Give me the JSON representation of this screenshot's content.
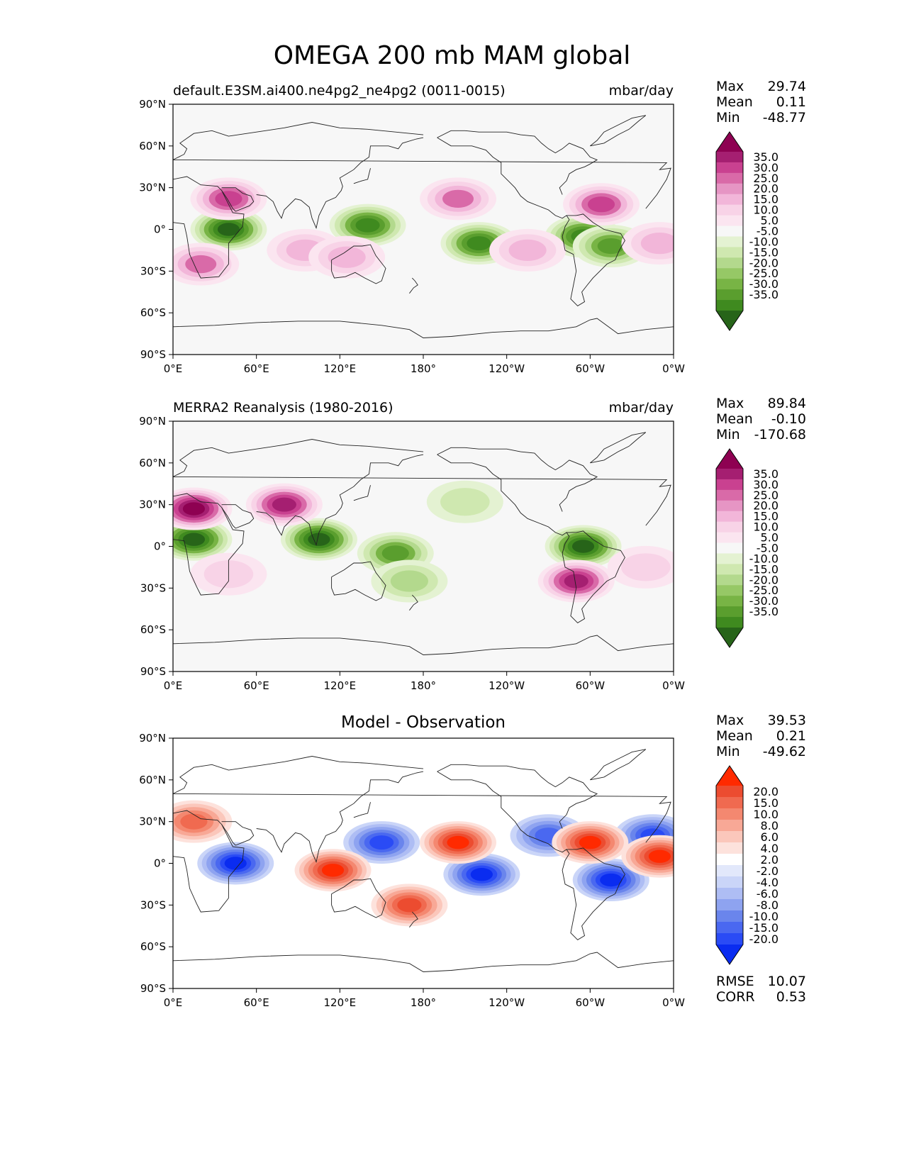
{
  "title": "OMEGA 200 mb MAM global",
  "panels": [
    {
      "id": "model",
      "left_title": "default.E3SM.ai400.ne4pg2_ne4pg2 (0011-0015)",
      "right_title": "mbar/day",
      "stats": {
        "max_label": "Max",
        "max": "29.74",
        "mean_label": "Mean",
        "mean": "0.11",
        "min_label": "Min",
        "min": "-48.77"
      },
      "colorbar": {
        "colors": [
          "#276419",
          "#3f8a1f",
          "#5a9e2e",
          "#78b445",
          "#96c866",
          "#b3d98d",
          "#cfe8b0",
          "#e4f2d2",
          "#f7f7f7",
          "#fbe5f0",
          "#f8d3e7",
          "#f2b6d9",
          "#e695c4",
          "#d96aa8",
          "#c94190",
          "#a51f71",
          "#8e0152"
        ],
        "labels": [
          "35.0",
          "30.0",
          "25.0",
          "20.0",
          "15.0",
          "10.0",
          "5.0",
          "-5.0",
          "-10.0",
          "-15.0",
          "-20.0",
          "-25.0",
          "-30.0",
          "-35.0"
        ]
      }
    },
    {
      "id": "obs",
      "left_title": "MERRA2 Reanalysis (1980-2016)",
      "right_title": "mbar/day",
      "stats": {
        "max_label": "Max",
        "max": "89.84",
        "mean_label": "Mean",
        "mean": "-0.10",
        "min_label": "Min",
        "min": "-170.68"
      },
      "colorbar": {
        "colors": [
          "#276419",
          "#3f8a1f",
          "#5a9e2e",
          "#78b445",
          "#96c866",
          "#b3d98d",
          "#cfe8b0",
          "#e4f2d2",
          "#f7f7f7",
          "#fbe5f0",
          "#f8d3e7",
          "#f2b6d9",
          "#e695c4",
          "#d96aa8",
          "#c94190",
          "#a51f71",
          "#8e0152"
        ],
        "labels": [
          "35.0",
          "30.0",
          "25.0",
          "20.0",
          "15.0",
          "10.0",
          "5.0",
          "-5.0",
          "-10.0",
          "-15.0",
          "-20.0",
          "-25.0",
          "-30.0",
          "-35.0"
        ]
      }
    },
    {
      "id": "diff",
      "center_title": "Model - Observation",
      "stats": {
        "max_label": "Max",
        "max": "39.53",
        "mean_label": "Mean",
        "mean": "0.21",
        "min_label": "Min",
        "min": "-49.62"
      },
      "extra_stats": {
        "rmse_label": "RMSE",
        "rmse": "10.07",
        "corr_label": "CORR",
        "corr": "0.53"
      },
      "colorbar": {
        "colors": [
          "#0a2cf0",
          "#2a4bf5",
          "#4a68f0",
          "#6a85ec",
          "#8ea3f0",
          "#aebdf4",
          "#cad5f8",
          "#e2e8fb",
          "#ffffff",
          "#fde2dc",
          "#fbc7bb",
          "#f8a896",
          "#f48870",
          "#f06a50",
          "#ec4c30",
          "#ff2a00"
        ],
        "labels": [
          "20.0",
          "15.0",
          "10.0",
          "8.0",
          "6.0",
          "4.0",
          "2.0",
          "-2.0",
          "-4.0",
          "-6.0",
          "-8.0",
          "-10.0",
          "-15.0",
          "-20.0"
        ]
      }
    }
  ],
  "axes": {
    "lat_ticks": [
      "90°N",
      "60°N",
      "30°N",
      "0°",
      "30°S",
      "60°S",
      "90°S"
    ],
    "lon_ticks": [
      "0°E",
      "60°E",
      "120°E",
      "180°",
      "120°W",
      "60°W",
      "0°W"
    ]
  },
  "chart_data": [
    {
      "type": "heatmap",
      "title": "default.E3SM.ai400.ne4pg2_ne4pg2 (0011-0015)",
      "units": "mbar/day",
      "levels": [
        -35,
        -30,
        -25,
        -20,
        -15,
        -10,
        -5,
        5,
        10,
        15,
        20,
        25,
        30,
        35
      ],
      "xrange": [
        0,
        360
      ],
      "yrange": [
        -90,
        90
      ],
      "features": [
        {
          "lon": 40,
          "lat": 0,
          "value": -35
        },
        {
          "lon": 140,
          "lat": 3,
          "value": -30
        },
        {
          "lon": 220,
          "lat": -10,
          "value": -30
        },
        {
          "lon": 295,
          "lat": -5,
          "value": -30
        },
        {
          "lon": 315,
          "lat": -12,
          "value": -25
        },
        {
          "lon": 40,
          "lat": 22,
          "value": 25
        },
        {
          "lon": 205,
          "lat": 22,
          "value": 20
        },
        {
          "lon": 308,
          "lat": 18,
          "value": 25
        },
        {
          "lon": 20,
          "lat": -25,
          "value": 20
        },
        {
          "lon": 95,
          "lat": -15,
          "value": 15
        },
        {
          "lon": 125,
          "lat": -20,
          "value": 15
        },
        {
          "lon": 255,
          "lat": -15,
          "value": 15
        },
        {
          "lon": 350,
          "lat": -10,
          "value": 15
        }
      ]
    },
    {
      "type": "heatmap",
      "title": "MERRA2 Reanalysis (1980-2016)",
      "units": "mbar/day",
      "levels": [
        -35,
        -30,
        -25,
        -20,
        -15,
        -10,
        -5,
        5,
        10,
        15,
        20,
        25,
        30,
        35
      ],
      "xrange": [
        0,
        360
      ],
      "yrange": [
        -90,
        90
      ],
      "features": [
        {
          "lon": 15,
          "lat": 5,
          "value": -35
        },
        {
          "lon": 105,
          "lat": 5,
          "value": -35
        },
        {
          "lon": 160,
          "lat": -5,
          "value": -25
        },
        {
          "lon": 295,
          "lat": 0,
          "value": -35
        },
        {
          "lon": 15,
          "lat": 27,
          "value": 35
        },
        {
          "lon": 80,
          "lat": 30,
          "value": 30
        },
        {
          "lon": 290,
          "lat": -25,
          "value": 30
        },
        {
          "lon": 170,
          "lat": -25,
          "value": -15
        },
        {
          "lon": 210,
          "lat": 32,
          "value": -10
        },
        {
          "lon": 40,
          "lat": -20,
          "value": 10
        },
        {
          "lon": 340,
          "lat": -15,
          "value": 10
        }
      ]
    },
    {
      "type": "heatmap",
      "title": "Model - Observation",
      "levels": [
        -20,
        -15,
        -10,
        -8,
        -6,
        -4,
        -2,
        2,
        4,
        6,
        8,
        10,
        15,
        20
      ],
      "xrange": [
        0,
        360
      ],
      "yrange": [
        -90,
        90
      ],
      "features": [
        {
          "lon": 45,
          "lat": 0,
          "value": -20
        },
        {
          "lon": 222,
          "lat": -8,
          "value": -20
        },
        {
          "lon": 315,
          "lat": -12,
          "value": -20
        },
        {
          "lon": 150,
          "lat": 15,
          "value": -15
        },
        {
          "lon": 345,
          "lat": 20,
          "value": -15
        },
        {
          "lon": 270,
          "lat": 20,
          "value": -10
        },
        {
          "lon": 115,
          "lat": -5,
          "value": 20
        },
        {
          "lon": 205,
          "lat": 15,
          "value": 20
        },
        {
          "lon": 300,
          "lat": 15,
          "value": 20
        },
        {
          "lon": 350,
          "lat": 5,
          "value": 20
        },
        {
          "lon": 15,
          "lat": 30,
          "value": 10
        },
        {
          "lon": 170,
          "lat": -30,
          "value": 15
        }
      ]
    }
  ]
}
